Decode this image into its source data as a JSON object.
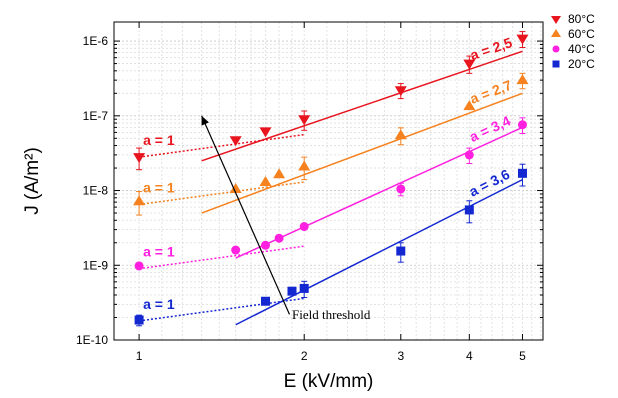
{
  "chart_data": {
    "type": "scatter",
    "xlabel": "E (kV/mm)",
    "ylabel": "J (A/m²)",
    "x_scale": "log",
    "y_scale": "log",
    "xlim": [
      0.9,
      5.45
    ],
    "ylim": [
      1e-10,
      1.8e-06
    ],
    "x_ticks": [
      1,
      2,
      3,
      4,
      5
    ],
    "x_tick_labels": [
      "1",
      "2",
      "3",
      "4",
      "5"
    ],
    "y_ticks": [
      1e-10,
      1e-09,
      1e-08,
      1e-07,
      1e-06
    ],
    "y_tick_labels": [
      "1E-10",
      "1E-9",
      "1E-8",
      "1E-7",
      "1E-6"
    ],
    "grid": true,
    "legend_position": "top-right",
    "series": [
      {
        "name": "80°C",
        "color": "#e8141e",
        "marker": "triangle-down",
        "points": [
          {
            "x": 1.0,
            "y": 2.8e-08,
            "err": 9e-09
          },
          {
            "x": 1.5,
            "y": 4.7e-08,
            "err": 0
          },
          {
            "x": 1.7,
            "y": 6.2e-08,
            "err": 0
          },
          {
            "x": 2.0,
            "y": 9e-08,
            "err": 2.6e-08
          },
          {
            "x": 3.0,
            "y": 2.2e-07,
            "err": 5e-08
          },
          {
            "x": 4.0,
            "y": 5e-07,
            "err": 1.3e-07
          },
          {
            "x": 5.0,
            "y": 1.08e-06,
            "err": 2.6e-07
          }
        ],
        "fit_low": {
          "x": [
            1.0,
            2.0
          ],
          "y": [
            2.8e-08,
            5.6e-08
          ]
        },
        "fit_high": {
          "x": [
            1.3,
            5.0
          ],
          "y": [
            2.5e-08,
            7.3e-07
          ]
        },
        "slope_low_label": "a = 1",
        "slope_high_label": "a = 2,5"
      },
      {
        "name": "60°C",
        "color": "#f5821f",
        "marker": "triangle-up",
        "points": [
          {
            "x": 1.0,
            "y": 7.2e-09,
            "err": 2.5e-09
          },
          {
            "x": 1.5,
            "y": 1.05e-08,
            "err": 0
          },
          {
            "x": 1.7,
            "y": 1.3e-08,
            "err": 0
          },
          {
            "x": 1.8,
            "y": 1.65e-08,
            "err": 0
          },
          {
            "x": 2.0,
            "y": 2.1e-08,
            "err": 7e-09
          },
          {
            "x": 3.0,
            "y": 5.5e-08,
            "err": 1.4e-08
          },
          {
            "x": 4.0,
            "y": 1.35e-07,
            "err": 0
          },
          {
            "x": 5.0,
            "y": 3e-07,
            "err": 7e-08
          }
        ],
        "fit_low": {
          "x": [
            1.0,
            2.0
          ],
          "y": [
            6.5e-09,
            1.3e-08
          ]
        },
        "fit_high": {
          "x": [
            1.3,
            5.0
          ],
          "y": [
            5e-09,
            2e-07
          ]
        },
        "slope_low_label": "a = 1",
        "slope_high_label": "a = 2,7"
      },
      {
        "name": "40°C",
        "color": "#ff20e0",
        "marker": "circle",
        "points": [
          {
            "x": 1.0,
            "y": 9.8e-10,
            "err": 0
          },
          {
            "x": 1.5,
            "y": 1.6e-09,
            "err": 0
          },
          {
            "x": 1.7,
            "y": 1.85e-09,
            "err": 0
          },
          {
            "x": 1.8,
            "y": 2.3e-09,
            "err": 0
          },
          {
            "x": 2.0,
            "y": 3.3e-09,
            "err": 0
          },
          {
            "x": 3.0,
            "y": 1.05e-08,
            "err": 2e-09
          },
          {
            "x": 4.0,
            "y": 3e-08,
            "err": 7e-09
          },
          {
            "x": 5.0,
            "y": 7.6e-08,
            "err": 1.8e-08
          }
        ],
        "fit_low": {
          "x": [
            1.0,
            2.0
          ],
          "y": [
            9e-10,
            1.8e-09
          ]
        },
        "fit_high": {
          "x": [
            1.5,
            5.0
          ],
          "y": [
            1.25e-09,
            7e-08
          ]
        },
        "slope_low_label": "a = 1",
        "slope_high_label": "a = 3,4"
      },
      {
        "name": "20°C",
        "color": "#1428d2",
        "marker": "square",
        "points": [
          {
            "x": 1.0,
            "y": 1.85e-10,
            "err": 3e-11
          },
          {
            "x": 1.7,
            "y": 3.3e-10,
            "err": 0
          },
          {
            "x": 1.9,
            "y": 4.5e-10,
            "err": 0
          },
          {
            "x": 2.0,
            "y": 4.9e-10,
            "err": 1.2e-10
          },
          {
            "x": 3.0,
            "y": 1.55e-09,
            "err": 4.5e-10
          },
          {
            "x": 4.0,
            "y": 5.5e-09,
            "err": 1.8e-09
          },
          {
            "x": 5.0,
            "y": 1.7e-08,
            "err": 5.5e-09
          }
        ],
        "fit_low": {
          "x": [
            1.0,
            2.0
          ],
          "y": [
            1.8e-10,
            3.6e-10
          ]
        },
        "fit_high": {
          "x": [
            1.5,
            5.0
          ],
          "y": [
            1.6e-10,
            1.4e-08
          ]
        },
        "slope_low_label": "a = 1",
        "slope_high_label": "a = 3,6"
      }
    ],
    "annotations": [
      {
        "text": "Field threshold",
        "arrow_from": {
          "x": 1.88,
          "y": 2.2e-10
        },
        "arrow_to": {
          "x": 1.3,
          "y": 1e-07
        }
      }
    ]
  }
}
